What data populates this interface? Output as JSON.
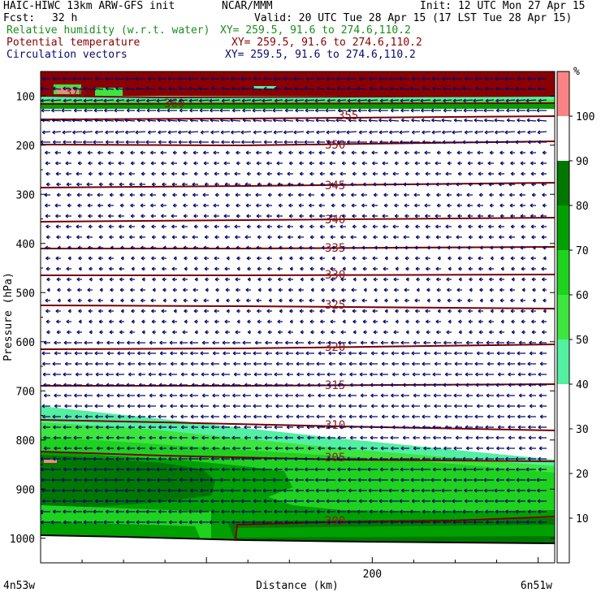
{
  "header": {
    "model": "HAIC-HIWC 13km ARW-GFS init",
    "org": "NCAR/MMM",
    "init": "Init: 12 UTC Mon 27 Apr 15",
    "fcst_label": "Fcst:",
    "fcst_value": "32 h",
    "valid": "Valid: 20 UTC Tue 28 Apr 15 (17 LST Tue 28 Apr 15)",
    "fields": [
      {
        "name": "Relative humidity (w.r.t. water)",
        "xy": "XY= 259.5, 91.6 to 274.6,110.2",
        "color": "#1a8f1a"
      },
      {
        "name": "Potential temperature",
        "xy": "XY= 259.5, 91.6 to 274.6,110.2",
        "color": "#8b0000"
      },
      {
        "name": "Circulation vectors",
        "xy": "XY= 259.5, 91.6 to 274.6,110.2",
        "color": "#0a0a6e"
      }
    ]
  },
  "axes": {
    "ylabel": "Pressure (hPa)",
    "xlabel": "Distance (km)",
    "x_left_label": "4n53w",
    "x_right_label": "6n51w"
  },
  "colorbar": {
    "unit": "%",
    "ticks": [
      "100",
      "90",
      "80",
      "70",
      "60",
      "50",
      "40",
      "30",
      "20",
      "10"
    ],
    "bands": [
      {
        "from": 100,
        "to": 110,
        "color": "#fa8484"
      },
      {
        "from": 90,
        "to": 100,
        "color": "#ffffff"
      },
      {
        "from": 80,
        "to": 90,
        "color": "#007800"
      },
      {
        "from": 70,
        "to": 80,
        "color": "#00a000"
      },
      {
        "from": 60,
        "to": 70,
        "color": "#1ed21e"
      },
      {
        "from": 50,
        "to": 60,
        "color": "#3ce63c"
      },
      {
        "from": 40,
        "to": 50,
        "color": "#52f0a0"
      },
      {
        "from": 0,
        "to": 40,
        "color": "#ffffff"
      }
    ]
  },
  "colors": {
    "theta_line": "#7a0000",
    "theta_label": "#8b1a1a",
    "vector": "#0a0a6e",
    "top_band": "#8b0000",
    "rh_pink": "#fa8484",
    "rh_90": "#007800",
    "rh_80": "#00a000",
    "rh_70": "#1ed21e",
    "rh_60": "#3ce63c",
    "rh_50": "#52f0a0"
  },
  "chart_data": {
    "type": "contour",
    "ylim": [
      1050,
      50
    ],
    "xlim": [
      0,
      310
    ],
    "y_ticks": [
      100,
      200,
      300,
      400,
      500,
      600,
      700,
      800,
      900,
      1000
    ],
    "x_ticks": [
      200
    ],
    "potential_temperature_contours": [
      {
        "value": 300,
        "pressure_at_label": 965
      },
      {
        "value": 305,
        "pressure_at_label": 833
      },
      {
        "value": 310,
        "pressure_at_label": 765
      },
      {
        "value": 315,
        "pressure_at_label": 688
      },
      {
        "value": 320,
        "pressure_at_label": 609
      },
      {
        "value": 325,
        "pressure_at_label": 524
      },
      {
        "value": 330,
        "pressure_at_label": 460
      },
      {
        "value": 335,
        "pressure_at_label": 406
      },
      {
        "value": 340,
        "pressure_at_label": 353
      },
      {
        "value": 345,
        "pressure_at_label": 277
      },
      {
        "value": 350,
        "pressure_at_label": 180
      },
      {
        "value": 355,
        "pressure_at_label": 143
      },
      {
        "value": 360,
        "pressure_at_label": 120
      },
      {
        "value": 370,
        "pressure_at_label": 105
      }
    ],
    "wind_vectors": "leftward circulation vectors throughout the cross-section"
  }
}
